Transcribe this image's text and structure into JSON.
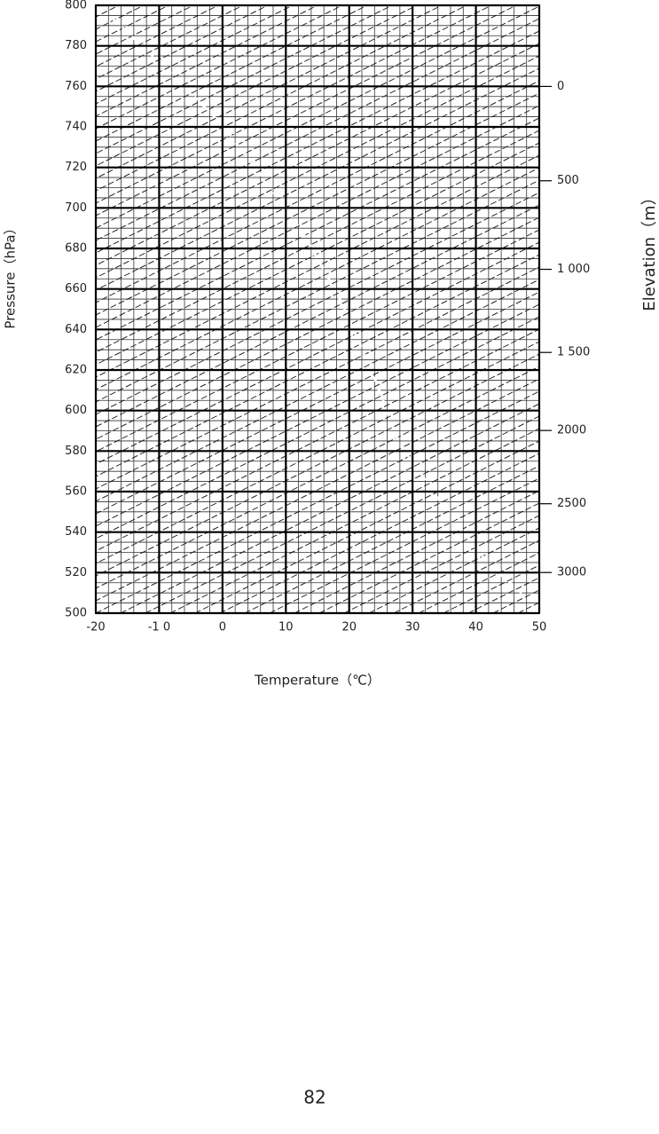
{
  "chart_data": {
    "type": "grid",
    "title": null,
    "x_label": "Temperature（℃）",
    "y_label": "Pressure（hPa）",
    "y2_label": "Elevation（m）",
    "xlim": [
      -20,
      50
    ],
    "xticks": [
      -20,
      {
        "value": -10,
        "label": "-1 0"
      },
      0,
      10,
      20,
      30,
      40,
      50
    ],
    "ylim": [
      800,
      500
    ],
    "yticks": [
      800,
      780,
      760,
      740,
      720,
      700,
      680,
      660,
      640,
      620,
      600,
      580,
      560,
      540,
      520,
      500
    ],
    "y2lim": [
      -406,
      3311
    ],
    "y2ticks": [
      0,
      500,
      {
        "value": 1000,
        "label": "1 000"
      },
      {
        "value": 1500,
        "label": "1 500"
      },
      2000,
      2500,
      3000
    ],
    "grid": true
  },
  "page_number": "82"
}
